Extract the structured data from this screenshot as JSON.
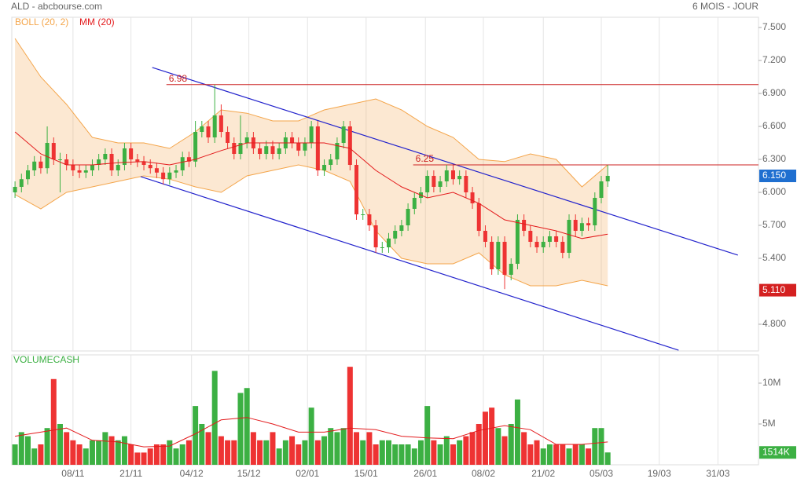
{
  "header": {
    "title": "ALD - abcbourse.com",
    "period": "6 MOIS - JOUR"
  },
  "chart_data": [
    {
      "type": "candlestick",
      "up_color": "#3cb043",
      "down_color": "#ee3333",
      "xlim": [
        -0.5,
        115.4
      ],
      "xticks": [
        {
          "value": 9,
          "label": "08/11"
        },
        {
          "value": 18,
          "label": "21/11"
        },
        {
          "value": 27.4,
          "label": "04/12"
        },
        {
          "value": 36.3,
          "label": "15/12"
        },
        {
          "value": 45.4,
          "label": "02/01"
        },
        {
          "value": 54.5,
          "label": "15/01"
        },
        {
          "value": 63.7,
          "label": "26/01"
        },
        {
          "value": 72.7,
          "label": "08/02"
        },
        {
          "value": 82,
          "label": "21/02"
        },
        {
          "value": 91,
          "label": "05/03"
        },
        {
          "value": 100,
          "label": "19/03"
        },
        {
          "value": 109.1,
          "label": "31/03"
        }
      ],
      "ylim": [
        4.557,
        7.593
      ],
      "yticks": [
        {
          "value": 7.5,
          "label": "7.500"
        },
        {
          "value": 7.2,
          "label": "7.200"
        },
        {
          "value": 6.9,
          "label": "6.900"
        },
        {
          "value": 6.6,
          "label": "6.600"
        },
        {
          "value": 6.3,
          "label": "6.300"
        },
        {
          "value": 6.0,
          "label": "6.000"
        },
        {
          "value": 5.7,
          "label": "5.700"
        },
        {
          "value": 5.4,
          "label": "5.400"
        },
        {
          "value": 4.8,
          "label": "4.800"
        }
      ],
      "grid": true,
      "open": [
        6.0,
        6.05,
        6.12,
        6.2,
        6.28,
        6.22,
        6.45,
        6.3,
        6.3,
        6.25,
        6.2,
        6.18,
        6.2,
        6.25,
        6.3,
        6.35,
        6.2,
        6.25,
        6.4,
        6.3,
        6.28,
        6.25,
        6.22,
        6.18,
        6.12,
        6.18,
        6.2,
        6.32,
        6.28,
        6.55,
        6.6,
        6.5,
        6.7,
        6.55,
        6.45,
        6.35,
        6.45,
        6.5,
        6.4,
        6.35,
        6.42,
        6.35,
        6.4,
        6.5,
        6.45,
        6.38,
        6.45,
        6.6,
        6.2,
        6.25,
        6.3,
        6.45,
        6.6,
        6.25,
        5.8,
        5.8,
        5.7,
        5.5,
        5.5,
        5.58,
        5.65,
        5.7,
        5.85,
        5.95,
        6.0,
        6.15,
        6.05,
        6.1,
        6.2,
        6.12,
        6.15,
        6.0,
        5.9,
        5.65,
        5.55,
        5.3,
        5.55,
        5.25,
        5.35,
        5.75,
        5.65,
        5.55,
        5.5,
        5.55,
        5.6,
        5.55,
        5.45,
        5.75,
        5.65,
        5.72,
        5.7,
        5.95,
        6.1
      ],
      "high": [
        6.1,
        6.17,
        6.25,
        6.33,
        6.33,
        6.6,
        6.5,
        6.36,
        6.35,
        6.3,
        6.25,
        6.25,
        6.3,
        6.35,
        6.4,
        6.4,
        6.3,
        6.45,
        6.45,
        6.35,
        6.33,
        6.3,
        6.27,
        6.23,
        6.23,
        6.25,
        6.37,
        6.37,
        6.65,
        6.65,
        6.65,
        6.98,
        6.8,
        6.6,
        6.5,
        6.7,
        6.55,
        6.55,
        6.45,
        6.47,
        6.47,
        6.45,
        6.55,
        6.55,
        6.5,
        6.5,
        6.65,
        6.65,
        6.3,
        6.35,
        6.5,
        6.65,
        6.65,
        6.3,
        5.85,
        5.85,
        5.75,
        5.55,
        5.63,
        5.7,
        5.75,
        5.9,
        6.0,
        6.05,
        6.2,
        6.2,
        6.15,
        6.25,
        6.25,
        6.2,
        6.2,
        6.05,
        5.95,
        5.7,
        5.6,
        5.6,
        5.6,
        5.4,
        5.8,
        5.8,
        5.7,
        5.6,
        5.6,
        5.65,
        5.65,
        5.6,
        5.8,
        5.8,
        5.77,
        5.77,
        6.0,
        6.15,
        6.25
      ],
      "low": [
        5.95,
        6.0,
        6.07,
        6.15,
        6.17,
        6.17,
        6.25,
        6.0,
        6.2,
        6.15,
        6.13,
        6.13,
        6.15,
        6.2,
        6.25,
        6.15,
        6.15,
        6.2,
        6.25,
        6.23,
        6.2,
        6.17,
        6.13,
        6.07,
        6.07,
        6.13,
        6.15,
        6.23,
        6.23,
        6.5,
        6.45,
        6.45,
        6.5,
        6.4,
        6.3,
        6.3,
        6.4,
        6.35,
        6.3,
        6.3,
        6.3,
        6.3,
        6.35,
        6.4,
        6.33,
        6.33,
        6.4,
        6.15,
        6.15,
        6.2,
        6.25,
        6.4,
        6.2,
        5.75,
        5.75,
        5.65,
        5.45,
        5.45,
        5.45,
        5.53,
        5.6,
        5.65,
        5.8,
        5.9,
        5.95,
        6.0,
        6.0,
        6.05,
        6.07,
        6.07,
        5.95,
        5.85,
        5.6,
        5.5,
        5.25,
        5.25,
        5.12,
        5.2,
        5.3,
        5.6,
        5.5,
        5.45,
        5.45,
        5.5,
        5.5,
        5.4,
        5.4,
        5.6,
        5.6,
        5.65,
        5.65,
        5.9,
        6.05
      ],
      "close": [
        6.05,
        6.12,
        6.2,
        6.28,
        6.22,
        6.45,
        6.3,
        6.3,
        6.25,
        6.2,
        6.18,
        6.2,
        6.25,
        6.3,
        6.35,
        6.2,
        6.25,
        6.4,
        6.3,
        6.28,
        6.25,
        6.22,
        6.18,
        6.12,
        6.18,
        6.2,
        6.32,
        6.28,
        6.55,
        6.6,
        6.5,
        6.7,
        6.55,
        6.45,
        6.35,
        6.45,
        6.5,
        6.4,
        6.35,
        6.42,
        6.35,
        6.4,
        6.5,
        6.45,
        6.38,
        6.45,
        6.6,
        6.2,
        6.25,
        6.3,
        6.45,
        6.6,
        6.25,
        5.8,
        5.8,
        5.7,
        5.5,
        5.5,
        5.58,
        5.65,
        5.7,
        5.85,
        5.95,
        6.0,
        6.15,
        6.05,
        6.1,
        6.2,
        6.12,
        6.15,
        6.0,
        5.9,
        5.65,
        5.55,
        5.3,
        5.55,
        5.25,
        5.35,
        5.75,
        5.65,
        5.55,
        5.5,
        5.55,
        5.6,
        5.55,
        5.45,
        5.75,
        5.65,
        5.72,
        5.7,
        5.95,
        6.1,
        6.15
      ],
      "bollinger": {
        "name": "BOLL (20, 2)",
        "color": "#f4a54a",
        "x": [
          0,
          4,
          8,
          12,
          16,
          20,
          24,
          28,
          32,
          36,
          40,
          44,
          48,
          52,
          56,
          60,
          64,
          68,
          72,
          76,
          80,
          84,
          88,
          92
        ],
        "upper": [
          7.4,
          7.05,
          6.8,
          6.5,
          6.45,
          6.45,
          6.4,
          6.55,
          6.75,
          6.72,
          6.65,
          6.65,
          6.75,
          6.8,
          6.85,
          6.75,
          6.6,
          6.5,
          6.3,
          6.28,
          6.35,
          6.3,
          6.05,
          6.25
        ],
        "lower": [
          5.98,
          5.85,
          6.0,
          6.05,
          6.1,
          6.15,
          6.12,
          6.05,
          6.0,
          6.15,
          6.2,
          6.25,
          6.2,
          6.1,
          5.65,
          5.4,
          5.35,
          5.35,
          5.45,
          5.25,
          5.15,
          5.15,
          5.2,
          5.15
        ]
      },
      "ma": {
        "name": "MM (20)",
        "color": "#e31a1c",
        "x": [
          0,
          4,
          8,
          12,
          16,
          20,
          24,
          28,
          32,
          36,
          40,
          44,
          48,
          52,
          56,
          60,
          64,
          68,
          72,
          76,
          80,
          84,
          88,
          92
        ],
        "values": [
          6.55,
          6.35,
          6.25,
          6.25,
          6.27,
          6.28,
          6.25,
          6.3,
          6.38,
          6.45,
          6.45,
          6.45,
          6.45,
          6.4,
          6.2,
          6.05,
          5.95,
          6.0,
          5.9,
          5.75,
          5.7,
          5.65,
          5.58,
          5.62
        ]
      },
      "trend_lines": [
        {
          "color": "#2222cc",
          "x": [
            21.3,
            112.2
          ],
          "y": [
            7.136,
            5.429
          ]
        },
        {
          "color": "#2222cc",
          "x": [
            19.5,
            103
          ],
          "y": [
            6.143,
            4.564
          ]
        }
      ],
      "levels": [
        {
          "value": 6.98,
          "label": "6.98",
          "start": 23.5,
          "color": "#cc2222"
        },
        {
          "value": 6.25,
          "label": "6.25",
          "start": 61.8,
          "color": "#cc2222"
        }
      ],
      "last_price": {
        "value": 6.15,
        "label": "6.150",
        "color": "#1f6fd0"
      },
      "band_marker": {
        "value": 5.11,
        "label": "5.110",
        "color": "#d42020"
      }
    },
    {
      "type": "bar",
      "title": "VOLUMECASH",
      "title_color": "#3cb043",
      "ylim": [
        0,
        13.46
      ],
      "yticks": [
        {
          "value": 10,
          "label": "10M"
        },
        {
          "value": 5,
          "label": "5M"
        }
      ],
      "values": [
        2.5,
        4,
        3.5,
        2,
        2.5,
        4.5,
        10.5,
        5,
        4,
        3,
        2.5,
        2,
        3,
        3,
        4,
        3.5,
        3,
        3.5,
        2.5,
        1.5,
        1.5,
        2,
        2.5,
        2.5,
        3,
        2,
        2.5,
        3,
        7.2,
        5,
        4,
        11.5,
        3.5,
        3,
        3,
        8.8,
        9.4,
        4,
        3,
        3,
        4,
        2,
        3,
        3.5,
        2.5,
        3,
        7,
        3,
        3.5,
        4.5,
        4,
        4.5,
        12,
        4,
        3,
        4,
        2.5,
        3,
        3,
        2.5,
        2.5,
        2.5,
        2,
        3,
        7.2,
        3,
        2.5,
        3.5,
        2.5,
        3,
        3.5,
        4,
        5,
        6.5,
        7,
        4.5,
        3.5,
        5,
        8,
        4,
        2.5,
        3,
        2,
        2.5,
        2.5,
        2.5,
        2,
        2.5,
        2.5,
        2,
        4.5,
        4.5,
        1.514
      ],
      "ma": {
        "color": "#e31a1c",
        "x": [
          0,
          4,
          8,
          12,
          16,
          20,
          24,
          28,
          32,
          36,
          40,
          44,
          48,
          52,
          56,
          60,
          64,
          68,
          72,
          76,
          80,
          84,
          88,
          92
        ],
        "values": [
          3.5,
          4,
          4.5,
          3,
          2.8,
          2.2,
          2.3,
          3.8,
          5.5,
          5.8,
          5,
          4,
          4,
          4.5,
          4.3,
          3.5,
          3.3,
          3.2,
          4.2,
          4.8,
          4.3,
          2.5,
          2.5,
          2.8
        ]
      },
      "last_volume": {
        "value": 1.514,
        "label": "1514K",
        "color": "#3cb043"
      }
    }
  ]
}
